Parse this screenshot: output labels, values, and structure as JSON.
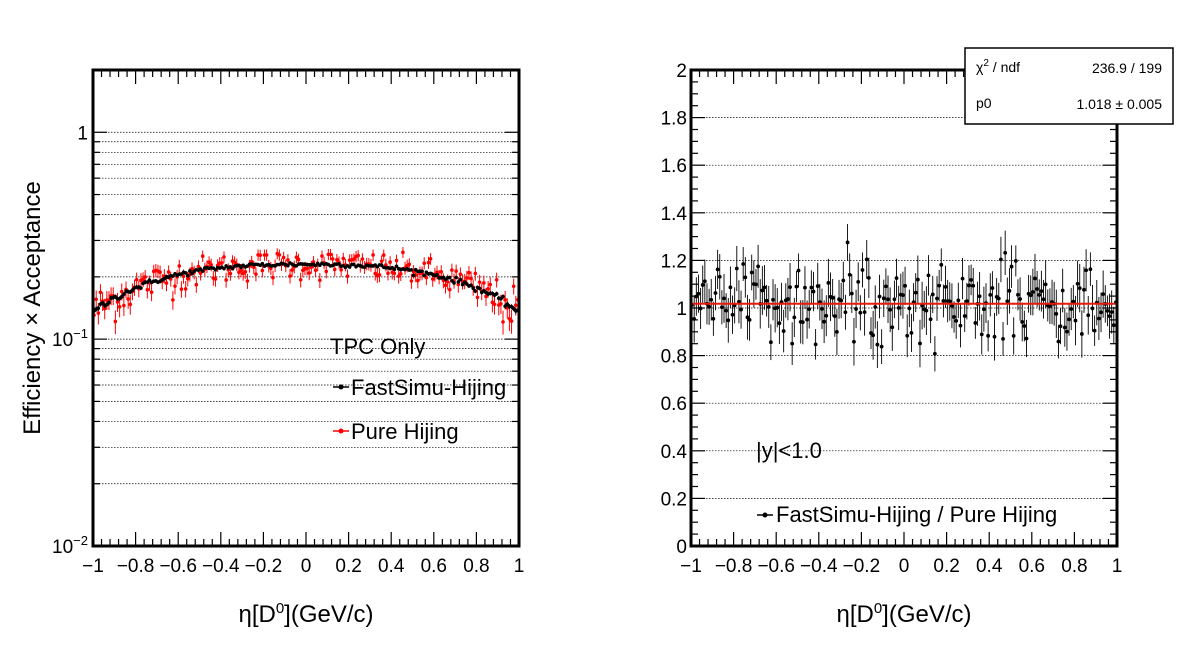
{
  "colors": {
    "fast": "#000000",
    "pure": "#ff0000",
    "fit": "#e8190d",
    "grid": "#000000"
  },
  "chart_data": [
    {
      "type": "scatter",
      "yscale": "log",
      "grid": true,
      "xlabel_main": "η[D",
      "xlabel_sup": "0",
      "xlabel_tail": "](GeV/c)",
      "ylabel": "Efficiency × Acceptance",
      "xlim": [
        -1,
        1
      ],
      "ylim": [
        0.01,
        2
      ],
      "xticks": [
        -1,
        -0.8,
        -0.6,
        -0.4,
        -0.2,
        0,
        0.2,
        0.4,
        0.6,
        0.8,
        1
      ],
      "xtick_labels": [
        "−1",
        "−0.8",
        "−0.6",
        "−0.4",
        "−0.2",
        "0",
        "0.2",
        "0.4",
        "0.6",
        "0.8",
        "1"
      ],
      "yticks_major": [
        {
          "value": 0.01,
          "base": "10",
          "exp": "−2"
        },
        {
          "value": 0.1,
          "base": "10",
          "exp": "−1"
        },
        {
          "value": 1,
          "base": "1",
          "exp": ""
        }
      ],
      "legend": {
        "header": "TPC Only",
        "entries": [
          "FastSimu-Hijing",
          "Pure Hijing"
        ]
      },
      "series": [
        {
          "name": "FastSimu-Hijing",
          "color": "#000000",
          "shape_peak": 0.23,
          "shape_edge": 0.135,
          "noise": 0.003,
          "err": 0.004,
          "n": 200
        },
        {
          "name": "Pure Hijing",
          "color": "#ff0000",
          "shape_peak": 0.23,
          "shape_edge": 0.135,
          "noise": 0.018,
          "err": 0.016,
          "n": 200
        }
      ]
    },
    {
      "type": "scatter",
      "grid": true,
      "xlabel_main": "η[D",
      "xlabel_sup": "0",
      "xlabel_tail": "](GeV/c)",
      "xlim": [
        -1,
        1
      ],
      "ylim": [
        0,
        2
      ],
      "xticks": [
        -1,
        -0.8,
        -0.6,
        -0.4,
        -0.2,
        0,
        0.2,
        0.4,
        0.6,
        0.8,
        1
      ],
      "xtick_labels": [
        "−1",
        "−0.8",
        "−0.6",
        "−0.4",
        "−0.2",
        "0",
        "0.2",
        "0.4",
        "0.6",
        "0.8",
        "1"
      ],
      "yticks": [
        0,
        0.2,
        0.4,
        0.6,
        0.8,
        1,
        1.2,
        1.4,
        1.6,
        1.8,
        2
      ],
      "ytick_labels": [
        "0",
        "0.2",
        "0.4",
        "0.6",
        "0.8",
        "1",
        "1.2",
        "1.4",
        "1.6",
        "1.8",
        "2"
      ],
      "annotation": "|y|<1.0",
      "legend": {
        "entries": [
          "FastSimu-Hijing / Pure Hijing"
        ]
      },
      "series": [
        {
          "name": "FastSimu-Hijing / Pure Hijing",
          "color": "#000000",
          "mean": 1.018,
          "noise": 0.08,
          "err": 0.08,
          "n": 200
        }
      ],
      "fit": {
        "p0": 1.018,
        "color": "#e8190d"
      },
      "stats": {
        "row1_label": "χ",
        "row1_sup": "2",
        "row1_tail": " / ndf",
        "row1_value": "236.9 / 199",
        "row2_label": "p0",
        "row2_value": "1.018 ± 0.005"
      }
    }
  ]
}
